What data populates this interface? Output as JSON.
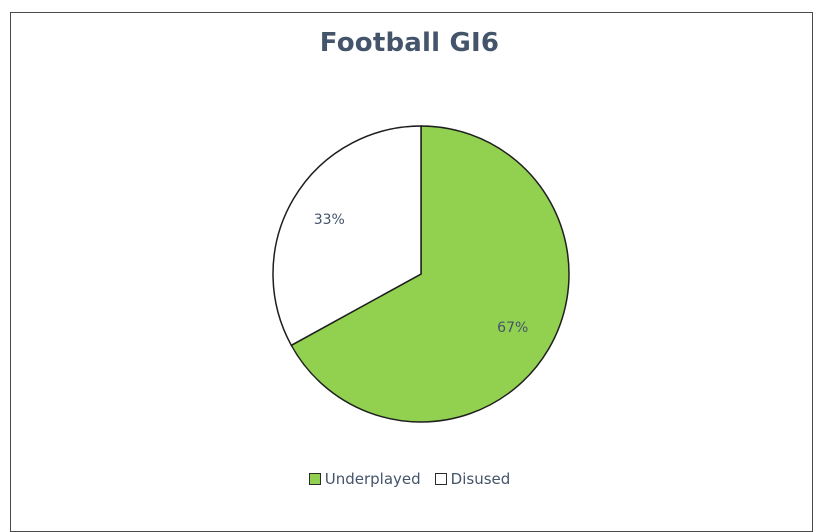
{
  "chart_data": {
    "type": "pie",
    "title": "Football GI6",
    "slices": [
      {
        "label": "Underplayed",
        "value": 67,
        "display": "67%",
        "color": "#92d050"
      },
      {
        "label": "Disused",
        "value": 33,
        "display": "33%",
        "color": "#ffffff"
      }
    ],
    "legend_position": "bottom"
  }
}
